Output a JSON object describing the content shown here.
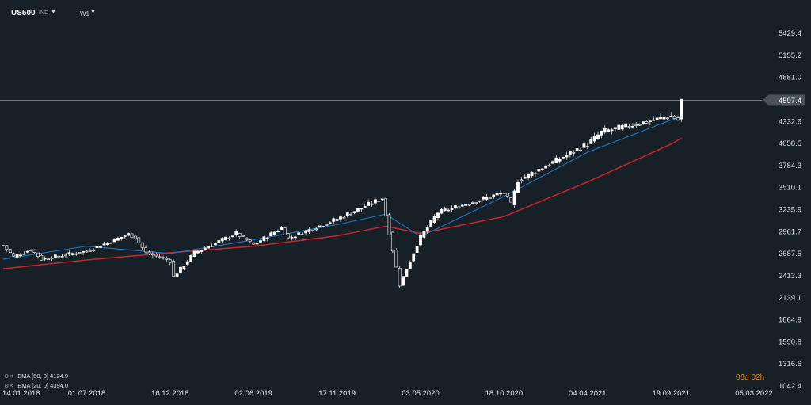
{
  "header": {
    "symbol": "US500",
    "instrument_type": "IND",
    "timeframe": "W1"
  },
  "indicators": [
    {
      "label": "EMA [50, 0]",
      "value": "4124.9",
      "color": "#c0262c"
    },
    {
      "label": "EMA [20, 0]",
      "value": "4394.0",
      "color": "#1f6fb5"
    }
  ],
  "countdown": "06d 02h",
  "price_label": "4597.4",
  "colors": {
    "background": "#171f27",
    "candle": "#ffffff",
    "ema50": "#c0262c",
    "ema20": "#1f6fb5",
    "countdown": "#e58a1f"
  },
  "chart_data": {
    "type": "candlestick",
    "ylim": [
      1042.4,
      5600
    ],
    "y_ticks": [
      "5429.4",
      "5155.2",
      "4881.0",
      "4597.4",
      "4332.6",
      "4058.5",
      "3784.3",
      "3510.1",
      "3235.9",
      "2961.7",
      "2687.5",
      "2413.3",
      "2139.1",
      "1864.9",
      "1590.8",
      "1316.6",
      "1042.4"
    ],
    "x_ticks": [
      "14.01.2018",
      "01.07.2018",
      "16.12.2018",
      "02.06.2019",
      "17.11.2019",
      "03.05.2020",
      "18.10.2020",
      "04.04.2021",
      "19.09.2021",
      "05.03.2022"
    ],
    "current_price": 4597.4,
    "series": [
      {
        "name": "EMA [50, 0]",
        "last": 4124.9,
        "points": [
          [
            "14.01.2018",
            2500
          ],
          [
            "01.07.2018",
            2610
          ],
          [
            "16.12.2018",
            2700
          ],
          [
            "02.06.2019",
            2780
          ],
          [
            "17.11.2019",
            2910
          ],
          [
            "23.02.2020",
            3030
          ],
          [
            "03.05.2020",
            2940
          ],
          [
            "18.10.2020",
            3150
          ],
          [
            "04.04.2021",
            3580
          ],
          [
            "19.09.2021",
            4050
          ],
          [
            "10.10.2021",
            4124.9
          ]
        ]
      },
      {
        "name": "EMA [20, 0]",
        "last": 4394.0,
        "points": [
          [
            "14.01.2018",
            2620
          ],
          [
            "01.07.2018",
            2780
          ],
          [
            "16.12.2018",
            2690
          ],
          [
            "02.06.2019",
            2860
          ],
          [
            "17.11.2019",
            3050
          ],
          [
            "23.02.2020",
            3180
          ],
          [
            "03.05.2020",
            2900
          ],
          [
            "18.10.2020",
            3400
          ],
          [
            "04.04.2021",
            3950
          ],
          [
            "19.09.2021",
            4350
          ],
          [
            "10.10.2021",
            4394.0
          ]
        ]
      }
    ],
    "close_path": [
      [
        "14.01.2018",
        2790
      ],
      [
        "04.02.2018",
        2650
      ],
      [
        "11.03.2018",
        2740
      ],
      [
        "01.04.2018",
        2620
      ],
      [
        "01.07.2018",
        2720
      ],
      [
        "23.09.2018",
        2930
      ],
      [
        "07.10.2018",
        2890
      ],
      [
        "28.10.2018",
        2700
      ],
      [
        "16.12.2018",
        2600
      ],
      [
        "23.12.2018",
        2400
      ],
      [
        "03.02.2019",
        2700
      ],
      [
        "28.04.2019",
        2940
      ],
      [
        "02.06.2019",
        2800
      ],
      [
        "28.07.2019",
        3010
      ],
      [
        "11.08.2019",
        2880
      ],
      [
        "17.11.2019",
        3120
      ],
      [
        "16.02.2020",
        3380
      ],
      [
        "22.03.2020",
        2300
      ],
      [
        "03.05.2020",
        2900
      ],
      [
        "07.06.2020",
        3200
      ],
      [
        "18.10.2020",
        3450
      ],
      [
        "01.11.2020",
        3300
      ],
      [
        "15.11.2020",
        3600
      ],
      [
        "04.04.2021",
        4050
      ],
      [
        "02.05.2021",
        4200
      ],
      [
        "19.09.2021",
        4400
      ],
      [
        "03.10.2021",
        4350
      ],
      [
        "10.10.2021",
        4597.4
      ]
    ]
  }
}
